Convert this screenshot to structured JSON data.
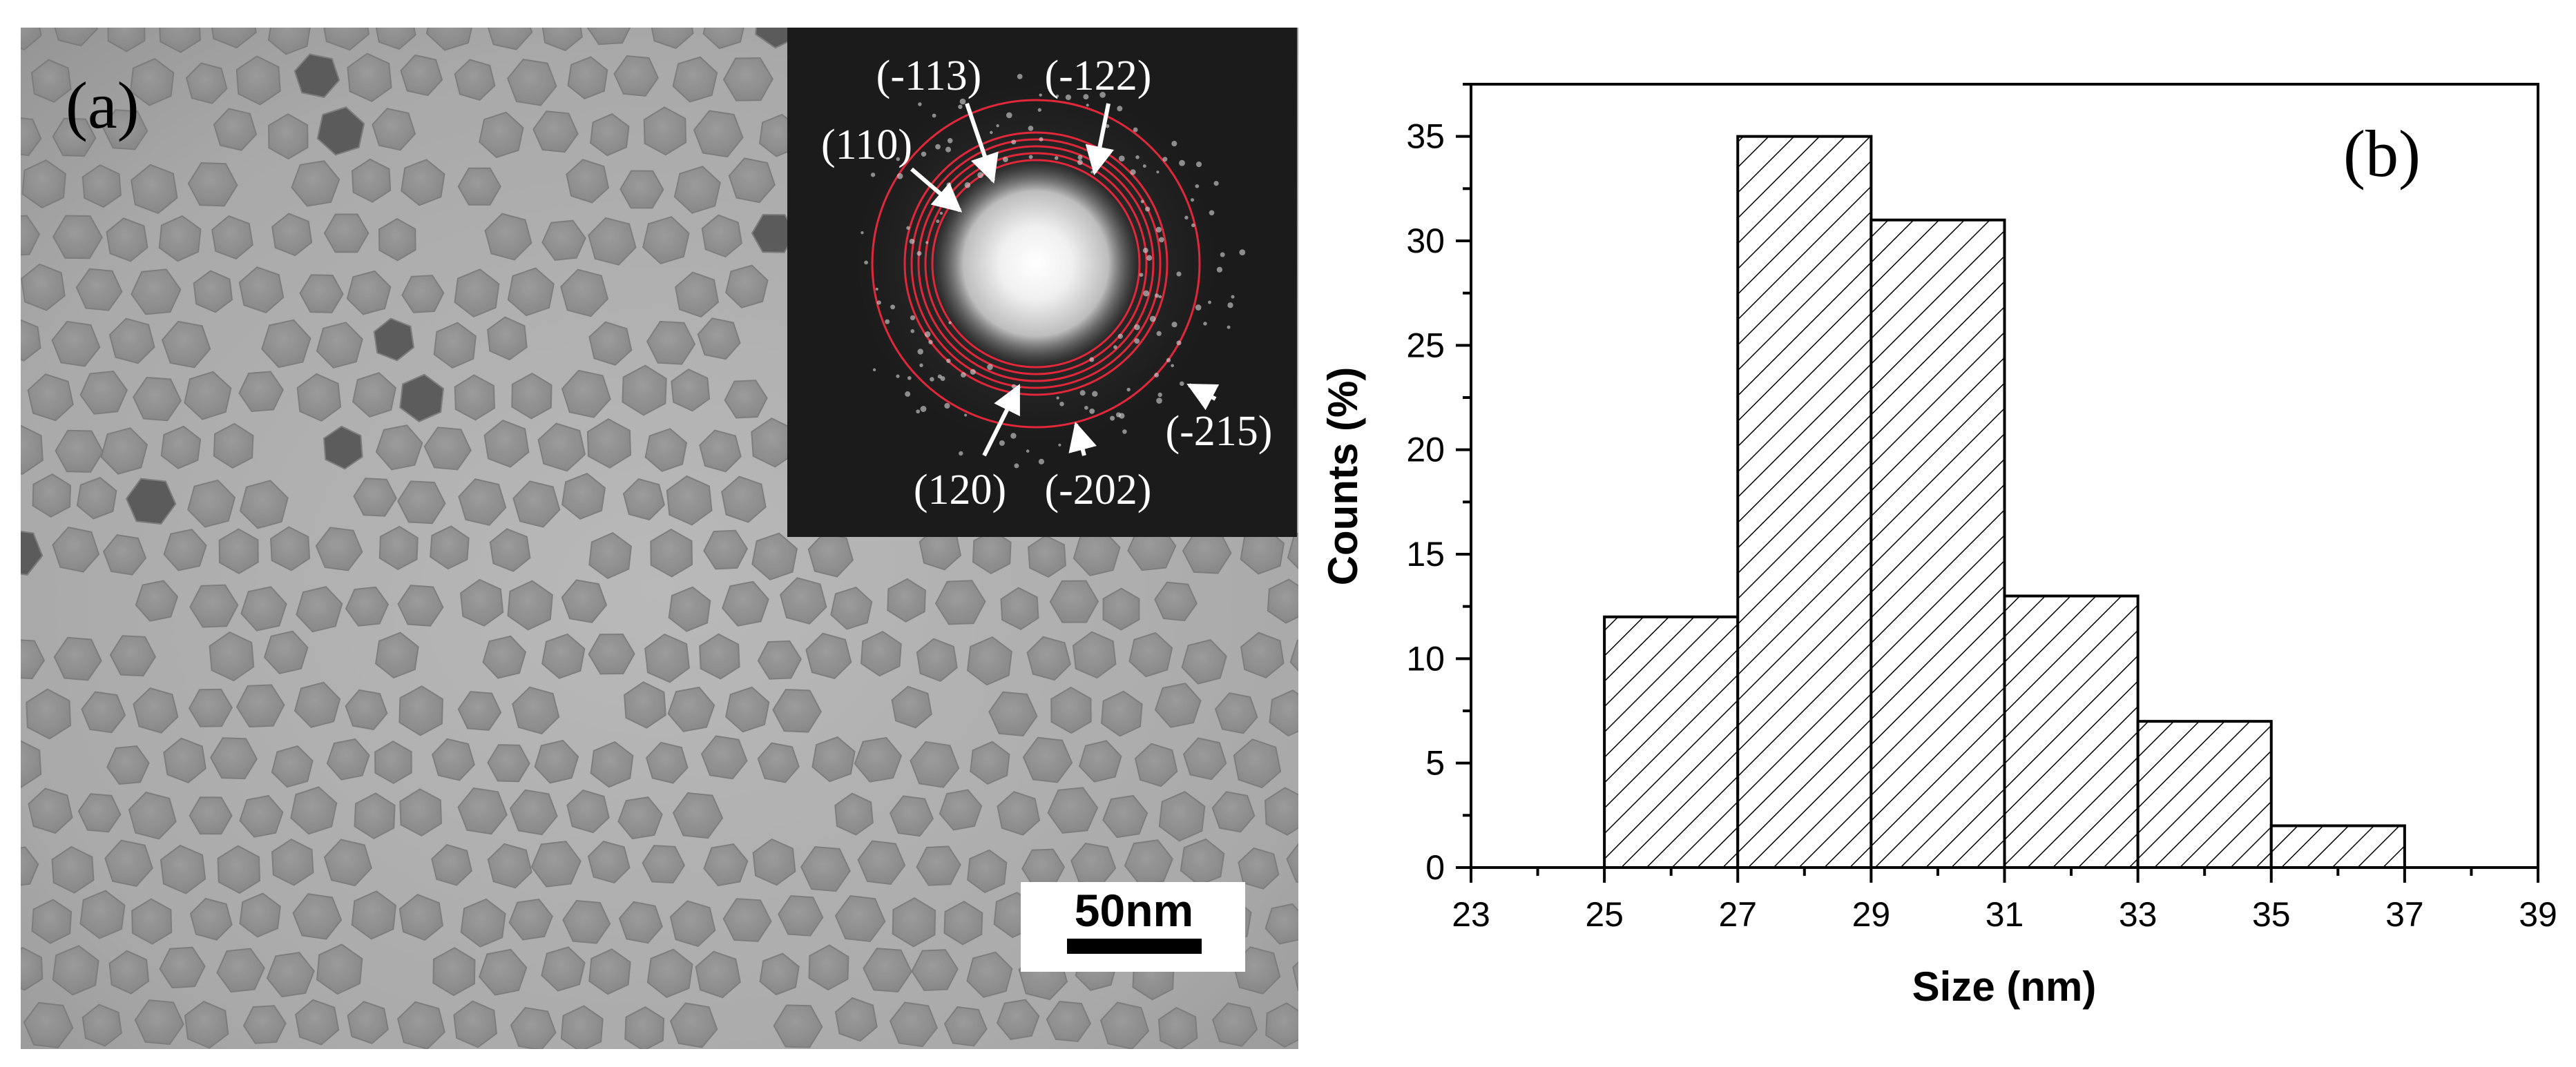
{
  "panel_a": {
    "label": "(a)",
    "scale_bar": {
      "label": "50nm",
      "length_nm": 50
    },
    "inset": {
      "planes": [
        "(-113)",
        "(-122)",
        "(110)",
        "(-215)",
        "(120)",
        "(-202)"
      ]
    }
  },
  "panel_b": {
    "label": "(b)"
  },
  "chart_data": {
    "type": "bar",
    "subtype": "histogram",
    "xlabel": "Size (nm)",
    "ylabel": "Counts (%)",
    "xlim": [
      23,
      39
    ],
    "ylim": [
      0,
      37.5
    ],
    "xticks": [
      "23",
      "25",
      "27",
      "29",
      "31",
      "33",
      "35",
      "37",
      "39"
    ],
    "yticks": [
      "0",
      "5",
      "10",
      "15",
      "20",
      "25",
      "30",
      "35"
    ],
    "bins": [
      {
        "x0": 25,
        "x1": 27,
        "value": 12
      },
      {
        "x0": 27,
        "x1": 29,
        "value": 35
      },
      {
        "x0": 29,
        "x1": 31,
        "value": 31
      },
      {
        "x0": 31,
        "x1": 33,
        "value": 13
      },
      {
        "x0": 33,
        "x1": 35,
        "value": 7
      },
      {
        "x0": 35,
        "x1": 37,
        "value": 2
      }
    ],
    "fill": "diagonal-hatch",
    "grid": false,
    "legend": "none"
  },
  "colors": {
    "ring": "#e0283a",
    "arrow": "#ffffff",
    "inset_bg": "#1b1b1b",
    "axis": "#000000"
  }
}
